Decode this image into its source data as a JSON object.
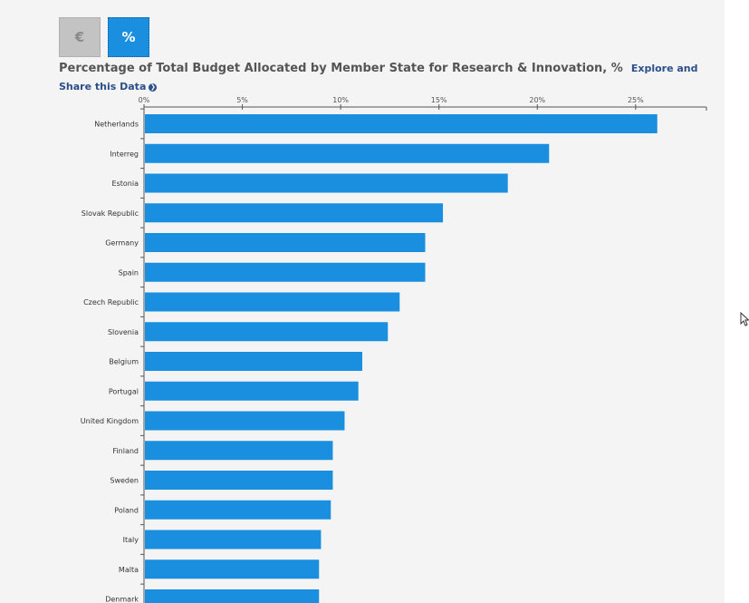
{
  "toggles": {
    "euro_label": "€",
    "percent_label": "%"
  },
  "title": {
    "text": "Percentage of Total Budget Allocated by Member State for Research & Innovation, %",
    "explore_link": "Explore and Share this Data",
    "explore_icon": "arrow-circle-icon"
  },
  "colors": {
    "bar": "#1a8fe0",
    "active_toggle": "#1a8fe0",
    "inactive_toggle": "#c3c3c3"
  },
  "chart_data": {
    "type": "bar",
    "orientation": "horizontal",
    "title": "Percentage of Total Budget Allocated by Member State for Research & Innovation, %",
    "xlabel": "",
    "ylabel": "",
    "xlim": [
      0,
      28.6
    ],
    "ticks": [
      0,
      5,
      10,
      15,
      20,
      25
    ],
    "tick_labels": [
      "0%",
      "5%",
      "10%",
      "15%",
      "20%",
      "25%"
    ],
    "axis_position": "top",
    "grid": false,
    "categories": [
      "Netherlands",
      "Interreg",
      "Estonia",
      "Slovak Republic",
      "Germany",
      "Spain",
      "Czech Republic",
      "Slovenia",
      "Belgium",
      "Portugal",
      "United Kingdom",
      "Finland",
      "Sweden",
      "Poland",
      "Italy",
      "Malta",
      "Denmark"
    ],
    "values": [
      26.1,
      20.6,
      18.5,
      15.2,
      14.3,
      14.3,
      13.0,
      12.4,
      11.1,
      10.9,
      10.2,
      9.6,
      9.6,
      9.5,
      9.0,
      8.9,
      8.9
    ]
  }
}
